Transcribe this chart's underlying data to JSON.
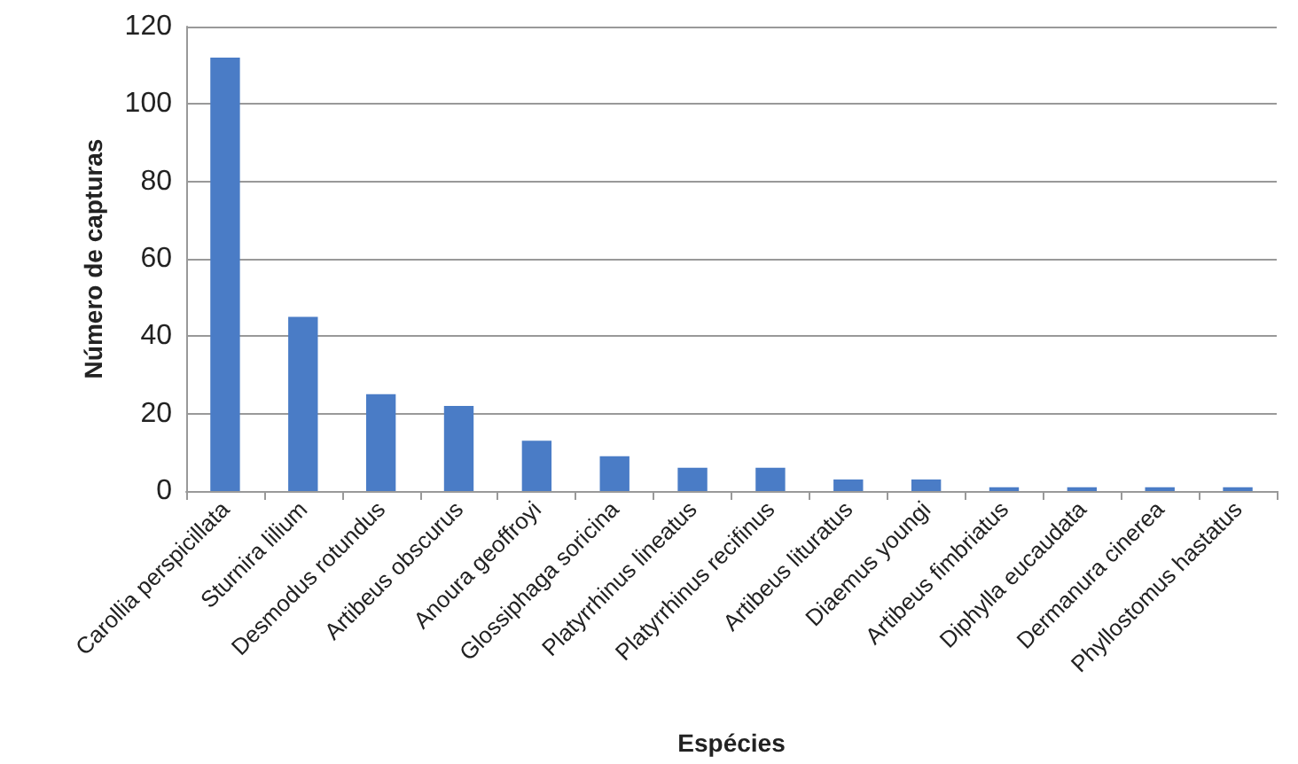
{
  "chart_data": {
    "type": "bar",
    "xlabel": "Espécies",
    "ylabel": "Número de capturas",
    "categories": [
      "Carollia perspicillata",
      "Sturnira lilium",
      "Desmodus rotundus",
      "Artibeus obscurus",
      "Anoura geoffroyi",
      "Glossiphaga soricina",
      "Platyrrhinus lineatus",
      "Platyrrhinus recifinus",
      "Artibeus lituratus",
      "Diaemus youngi",
      "Artibeus fimbriatus",
      "Diphylla eucaudata",
      "Dermanura cinerea",
      "Phyllostomus hastatus"
    ],
    "values": [
      112,
      45,
      25,
      22,
      13,
      9,
      6,
      6,
      3,
      3,
      1,
      1,
      1,
      1
    ],
    "color": "#4a7cc6",
    "ylim": [
      0,
      120
    ],
    "yticks": [
      0,
      20,
      40,
      60,
      80,
      100,
      120
    ],
    "grid": "y"
  }
}
